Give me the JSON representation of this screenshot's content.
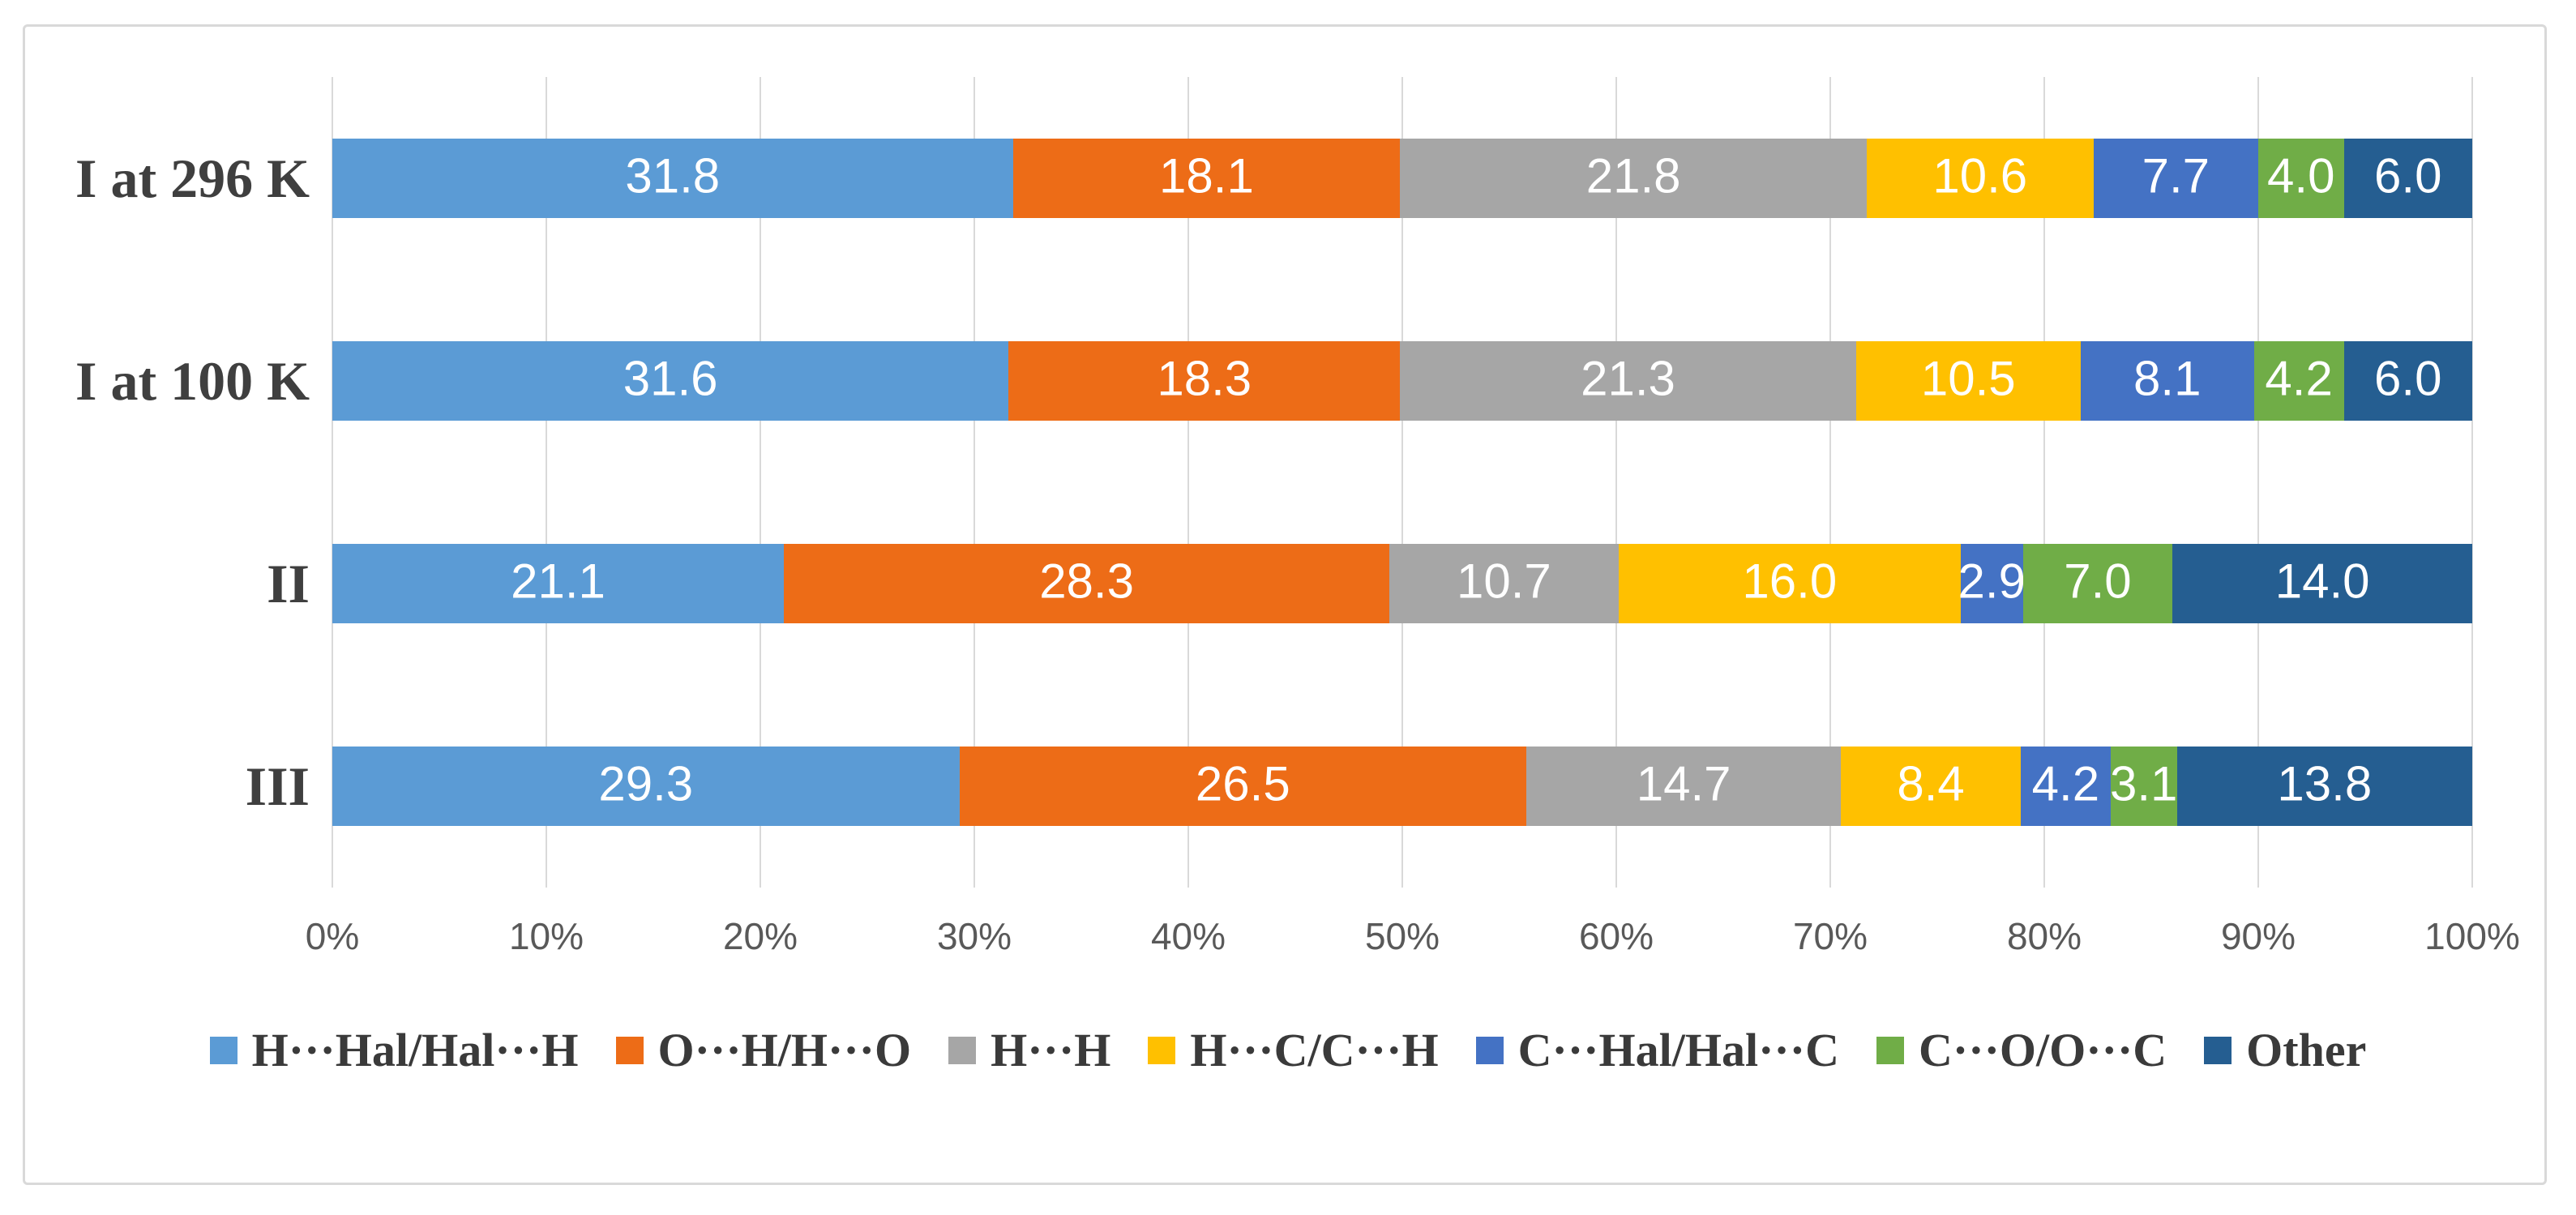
{
  "chart_data": {
    "type": "bar",
    "orientation": "horizontal",
    "stacked": true,
    "title": "",
    "xlabel": "",
    "ylabel": "",
    "grid": true,
    "legend_position": "bottom",
    "xlim": [
      0,
      100
    ],
    "x_ticks": [
      "0%",
      "10%",
      "20%",
      "30%",
      "40%",
      "50%",
      "60%",
      "70%",
      "80%",
      "90%",
      "100%"
    ],
    "categories": [
      "I at 296 K",
      "I at 100 K",
      "II",
      "III"
    ],
    "series": [
      {
        "name": "H···Hal/Hal···H",
        "color": "#5B9BD5",
        "values": [
          31.8,
          31.6,
          21.1,
          29.3
        ]
      },
      {
        "name": "O···H/H···O",
        "color": "#ED6C17",
        "values": [
          18.1,
          18.3,
          28.3,
          26.5
        ]
      },
      {
        "name": "H···H",
        "color": "#A6A6A6",
        "values": [
          21.8,
          21.3,
          10.7,
          14.7
        ]
      },
      {
        "name": "H···C/C···H",
        "color": "#FFC000",
        "values": [
          10.6,
          10.5,
          16.0,
          8.4
        ]
      },
      {
        "name": "C···Hal/Hal···C",
        "color": "#4472C4",
        "values": [
          7.7,
          8.1,
          2.9,
          4.2
        ]
      },
      {
        "name": "C···O/O···C",
        "color": "#70AD47",
        "values": [
          4.0,
          4.2,
          7.0,
          3.1
        ]
      },
      {
        "name": "Other",
        "color": "#255E91",
        "values": [
          6.0,
          6.0,
          14.0,
          13.8
        ]
      }
    ],
    "value_label_decimals": 1,
    "value_label_color": "#FFFFFF"
  },
  "colors": {
    "background": "#FFFFFF",
    "frame_border": "#D9D9D9",
    "gridline": "#D9D9D9",
    "tick_text": "#595959",
    "category_text": "#3F3F3F",
    "legend_text": "#3A3A3A"
  }
}
